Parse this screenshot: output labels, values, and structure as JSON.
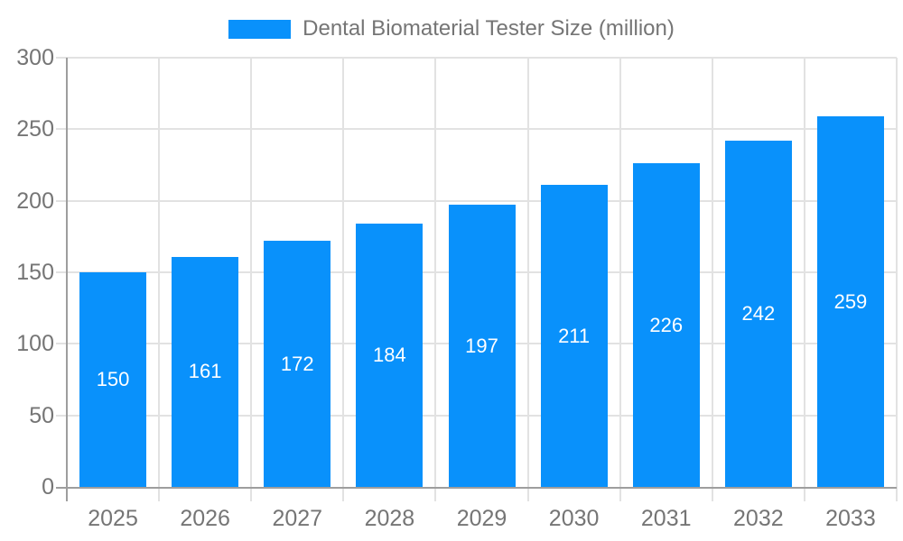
{
  "chart_data": {
    "type": "bar",
    "title": "Dental Biomaterial Tester Size (million)",
    "legend": {
      "label": "Dental Biomaterial Tester Size (million)",
      "position": "top"
    },
    "categories": [
      "2025",
      "2026",
      "2027",
      "2028",
      "2029",
      "2030",
      "2031",
      "2032",
      "2033"
    ],
    "series": [
      {
        "name": "Dental Biomaterial Tester Size (million)",
        "values": [
          150,
          161,
          172,
          184,
          197,
          211,
          226,
          242,
          259
        ]
      }
    ],
    "xlabel": "",
    "ylabel": "",
    "ylim": [
      0,
      300
    ],
    "ytick_step": 50,
    "yticks": [
      0,
      50,
      100,
      150,
      200,
      250,
      300
    ],
    "grid": "horizontal-and-vertical",
    "value_labels": "inside-bar-centered",
    "colors": {
      "bar": "#0991FB",
      "axis_line": "#9E9E9E",
      "gridline": "#E2E2E2",
      "tick_label": "#757575",
      "legend_label": "#757575",
      "value_label": "#FFFFFF",
      "background": "#FFFFFF"
    }
  }
}
